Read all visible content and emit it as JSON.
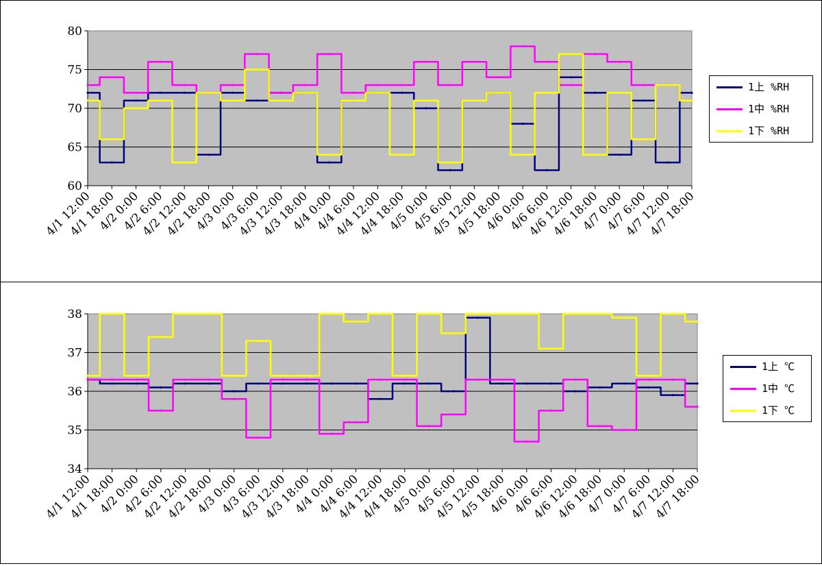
{
  "chart_data": [
    {
      "type": "line",
      "title": "",
      "xlabel": "",
      "ylabel": "",
      "ylim": [
        60,
        80
      ],
      "yticks": [
        60,
        65,
        70,
        75,
        80
      ],
      "grid": true,
      "legend_position": "right",
      "categories": [
        "4/1 12:00",
        "4/1 18:00",
        "4/2 0:00",
        "4/2 6:00",
        "4/2 12:00",
        "4/2 18:00",
        "4/3 0:00",
        "4/3 6:00",
        "4/3 12:00",
        "4/3 18:00",
        "4/4 0:00",
        "4/4 6:00",
        "4/4 12:00",
        "4/4 18:00",
        "4/5 0:00",
        "4/5 6:00",
        "4/5 12:00",
        "4/5 18:00",
        "4/6 0:00",
        "4/6 6:00",
        "4/6 12:00",
        "4/6 18:00",
        "4/7 0:00",
        "4/7 6:00",
        "4/7 12:00",
        "4/7 18:00"
      ],
      "series": [
        {
          "name": "1上 %RH",
          "color": "#000080",
          "values": [
            72,
            63,
            71,
            72,
            72,
            64,
            72,
            71,
            72,
            72,
            63,
            71,
            72,
            72,
            70,
            62,
            71,
            72,
            68,
            62,
            74,
            72,
            64,
            71,
            63,
            72
          ]
        },
        {
          "name": "1中 %RH",
          "color": "#ff00ff",
          "values": [
            73,
            74,
            72,
            76,
            73,
            72,
            73,
            77,
            72,
            73,
            77,
            72,
            73,
            73,
            76,
            73,
            76,
            74,
            78,
            76,
            73,
            77,
            76,
            73,
            73,
            71
          ]
        },
        {
          "name": "1下 %RH",
          "color": "#ffff00",
          "values": [
            71,
            66,
            70,
            71,
            63,
            72,
            71,
            75,
            71,
            72,
            64,
            71,
            72,
            64,
            71,
            63,
            71,
            72,
            64,
            72,
            77,
            64,
            72,
            66,
            73,
            71
          ]
        }
      ]
    },
    {
      "type": "line",
      "title": "",
      "xlabel": "",
      "ylabel": "",
      "ylim": [
        34,
        38
      ],
      "yticks": [
        34,
        35,
        36,
        37,
        38
      ],
      "grid": true,
      "legend_position": "right",
      "categories": [
        "4/1 12:00",
        "4/1 18:00",
        "4/2 0:00",
        "4/2 6:00",
        "4/2 12:00",
        "4/2 18:00",
        "4/3 0:00",
        "4/3 6:00",
        "4/3 12:00",
        "4/3 18:00",
        "4/4 0:00",
        "4/4 6:00",
        "4/4 12:00",
        "4/4 18:00",
        "4/5 0:00",
        "4/5 6:00",
        "4/5 12:00",
        "4/5 18:00",
        "4/6 0:00",
        "4/6 6:00",
        "4/6 12:00",
        "4/6 18:00",
        "4/7 0:00",
        "4/7 6:00",
        "4/7 12:00",
        "4/7 18:00"
      ],
      "series": [
        {
          "name": "1上 ℃",
          "color": "#000080",
          "values": [
            36.3,
            36.2,
            36.2,
            36.1,
            36.2,
            36.2,
            36.0,
            36.2,
            36.2,
            36.2,
            36.2,
            36.2,
            35.8,
            36.2,
            36.2,
            36.0,
            37.9,
            36.2,
            36.2,
            36.2,
            36.0,
            36.1,
            36.2,
            36.1,
            35.9,
            36.2
          ]
        },
        {
          "name": "1中 ℃",
          "color": "#ff00ff",
          "values": [
            36.3,
            36.3,
            36.3,
            35.5,
            36.3,
            36.3,
            35.8,
            34.8,
            36.3,
            36.3,
            34.9,
            35.2,
            36.3,
            36.3,
            35.1,
            35.4,
            36.3,
            36.3,
            34.7,
            35.5,
            36.3,
            35.1,
            35.0,
            36.3,
            36.3,
            35.6
          ]
        },
        {
          "name": "1下 ℃",
          "color": "#ffff00",
          "values": [
            36.4,
            38.0,
            36.4,
            37.4,
            38.0,
            38.0,
            36.4,
            37.3,
            36.4,
            36.4,
            38.0,
            37.8,
            38.0,
            36.4,
            38.0,
            37.5,
            38.0,
            38.0,
            38.0,
            37.1,
            38.0,
            38.0,
            37.9,
            36.4,
            38.0,
            37.8
          ]
        }
      ]
    }
  ]
}
